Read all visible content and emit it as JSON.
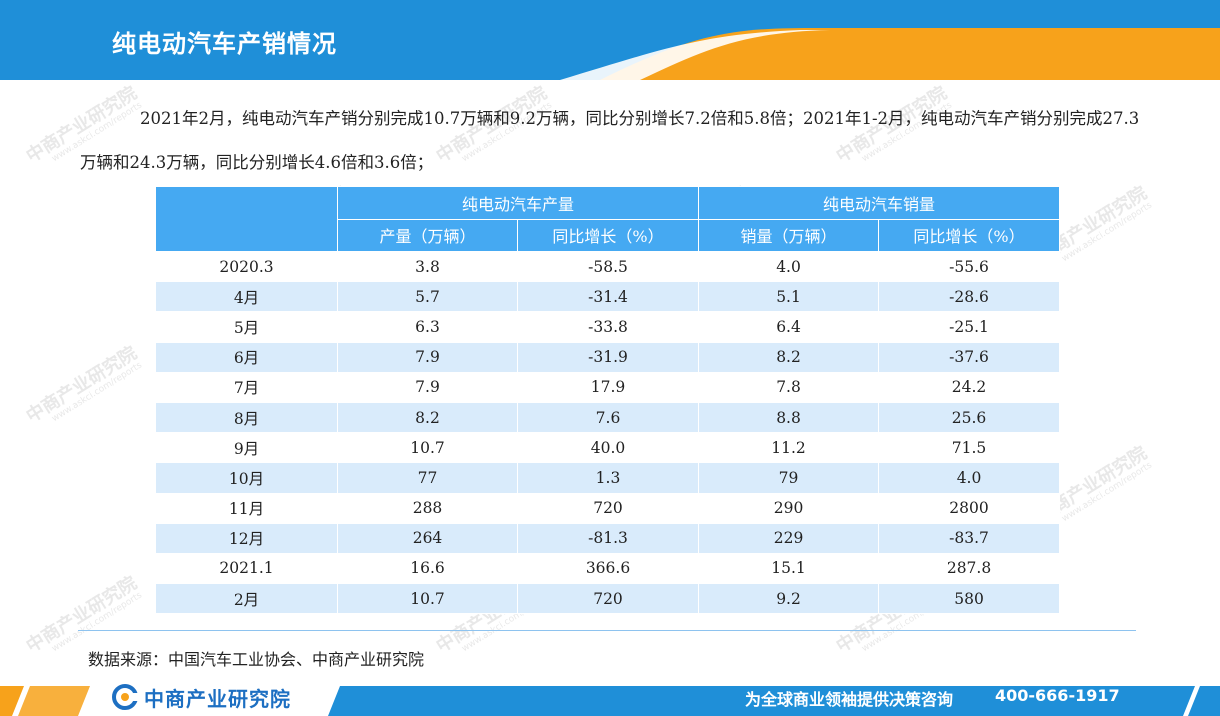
{
  "header": {
    "title": "纯电动汽车产销情况",
    "colors": {
      "blue": "#1f8fd8",
      "orange": "#f7a21b"
    }
  },
  "intro": {
    "paragraph": "2021年2月，纯电动汽车产销分别完成10.7万辆和9.2万辆，同比分别增长7.2倍和5.8倍；2021年1-2月，纯电动汽车产销分别完成27.3万辆和24.3万辆，同比分别增长4.6倍和3.6倍；"
  },
  "table": {
    "group_headers": [
      "纯电动汽车产量",
      "纯电动汽车销量"
    ],
    "sub_headers": [
      "产量（万辆）",
      "同比增长（%）",
      "销量（万辆）",
      "同比增长（%）"
    ],
    "header_color": "#45a9f2",
    "stripe_color": "#d9ebfb",
    "rows": [
      [
        "2020.3",
        "3.8",
        "-58.5",
        "4.0",
        "-55.6"
      ],
      [
        "4月",
        "5.7",
        "-31.4",
        "5.1",
        "-28.6"
      ],
      [
        "5月",
        "6.3",
        "-33.8",
        "6.4",
        "-25.1"
      ],
      [
        "6月",
        "7.9",
        "-31.9",
        "8.2",
        "-37.6"
      ],
      [
        "7月",
        "7.9",
        "17.9",
        "7.8",
        "24.2"
      ],
      [
        "8月",
        "8.2",
        "7.6",
        "8.8",
        "25.6"
      ],
      [
        "9月",
        "10.7",
        "40.0",
        "11.2",
        "71.5"
      ],
      [
        "10月",
        "77",
        "1.3",
        "79",
        "4.0"
      ],
      [
        "11月",
        "288",
        "720",
        "290",
        "2800"
      ],
      [
        "12月",
        "264",
        "-81.3",
        "229",
        "-83.7"
      ],
      [
        "2021.1",
        "16.6",
        "366.6",
        "15.1",
        "287.8"
      ],
      [
        "2月",
        "10.7",
        "720",
        "9.2",
        "580"
      ]
    ]
  },
  "source": "数据来源：中国汽车工业协会、中商产业研究院",
  "watermark": {
    "name": "中商产业研究院",
    "url": "www.askci.com/reports"
  },
  "footer": {
    "logo_text": "中商产业研究院",
    "logo_icon": "askci-logo-icon",
    "slogan": "为全球商业领袖提供决策咨询",
    "phone": "400-666-1917"
  }
}
